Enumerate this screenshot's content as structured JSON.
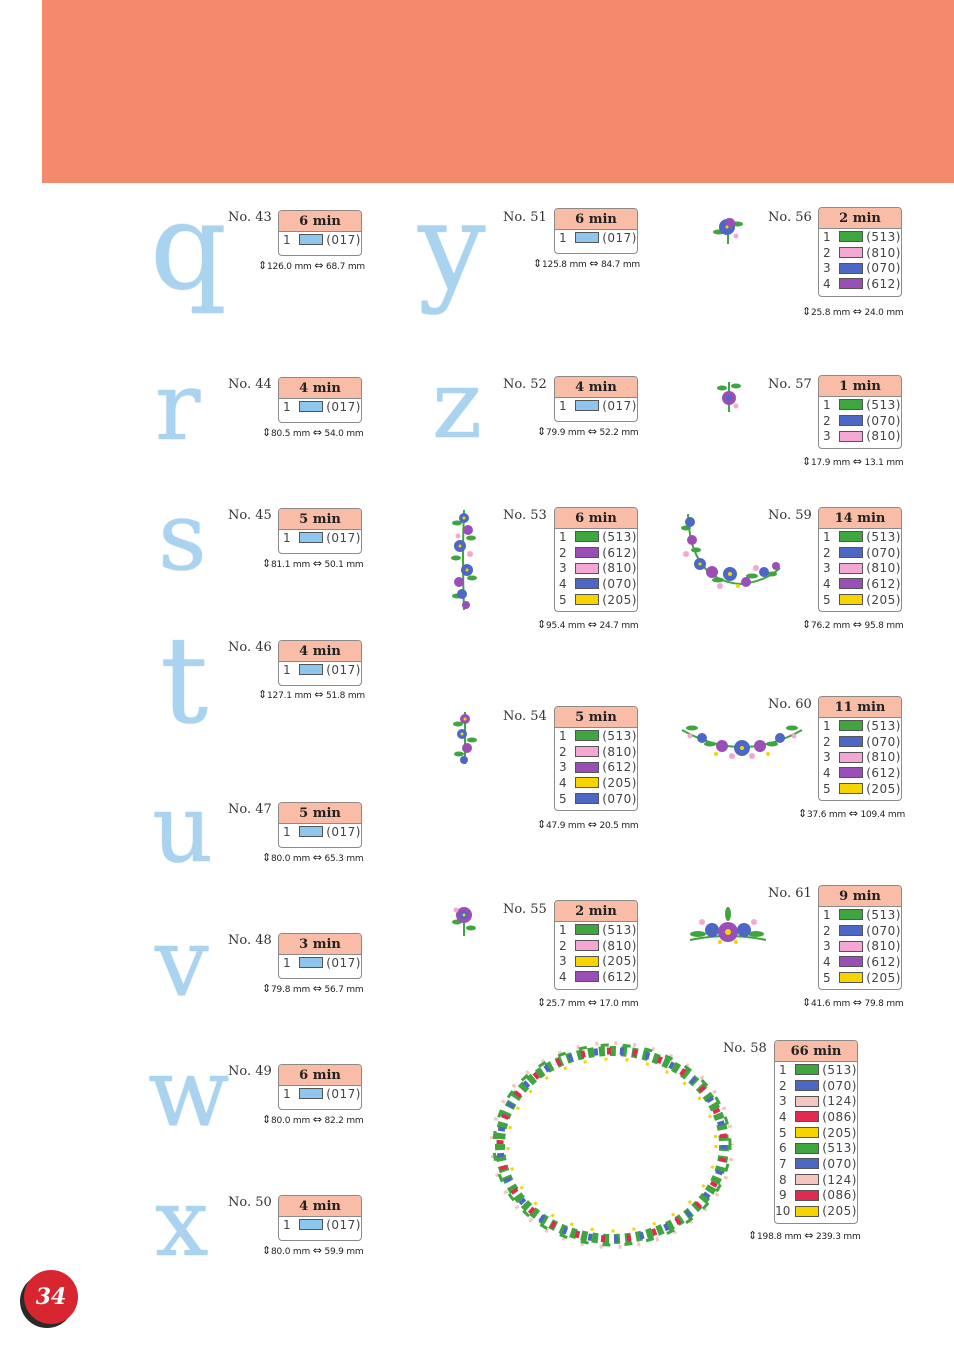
{
  "page_number": "34",
  "colors": {
    "header": "#f4896e",
    "glyph": "#a9d3ee",
    "badge": "#d7262f"
  },
  "thread_colors": {
    "017": "#8fc6ee",
    "513": "#3fa63f",
    "810": "#f4a7d3",
    "070": "#4d68c4",
    "612": "#9a4fb6",
    "205": "#f7d300",
    "124": "#f6c5c0",
    "086": "#e02a50"
  },
  "designs": [
    {
      "no": "No. 43",
      "time": "6 min",
      "glyph": "q",
      "threads": [
        {
          "n": "1",
          "code": "(017)"
        }
      ],
      "dims": "126.0 mm",
      "dimw": "68.7 mm"
    },
    {
      "no": "No. 44",
      "time": "4 min",
      "glyph": "r",
      "threads": [
        {
          "n": "1",
          "code": "(017)"
        }
      ],
      "dims": "80.5 mm",
      "dimw": "54.0 mm"
    },
    {
      "no": "No. 45",
      "time": "5 min",
      "glyph": "s",
      "threads": [
        {
          "n": "1",
          "code": "(017)"
        }
      ],
      "dims": "81.1 mm",
      "dimw": "50.1 mm"
    },
    {
      "no": "No. 46",
      "time": "4 min",
      "glyph": "t",
      "threads": [
        {
          "n": "1",
          "code": "(017)"
        }
      ],
      "dims": "127.1 mm",
      "dimw": "51.8 mm"
    },
    {
      "no": "No. 47",
      "time": "5 min",
      "glyph": "u",
      "threads": [
        {
          "n": "1",
          "code": "(017)"
        }
      ],
      "dims": "80.0 mm",
      "dimw": "65.3 mm"
    },
    {
      "no": "No. 48",
      "time": "3 min",
      "glyph": "v",
      "threads": [
        {
          "n": "1",
          "code": "(017)"
        }
      ],
      "dims": "79.8 mm",
      "dimw": "56.7 mm"
    },
    {
      "no": "No. 49",
      "time": "6 min",
      "glyph": "w",
      "threads": [
        {
          "n": "1",
          "code": "(017)"
        }
      ],
      "dims": "80.0 mm",
      "dimw": "82.2 mm"
    },
    {
      "no": "No. 50",
      "time": "4 min",
      "glyph": "x",
      "threads": [
        {
          "n": "1",
          "code": "(017)"
        }
      ],
      "dims": "80.0 mm",
      "dimw": "59.9 mm"
    },
    {
      "no": "No. 51",
      "time": "6 min",
      "glyph": "y",
      "threads": [
        {
          "n": "1",
          "code": "(017)"
        }
      ],
      "dims": "125.8 mm",
      "dimw": "84.7 mm"
    },
    {
      "no": "No. 52",
      "time": "4 min",
      "glyph": "z",
      "threads": [
        {
          "n": "1",
          "code": "(017)"
        }
      ],
      "dims": "79.9 mm",
      "dimw": "52.2 mm"
    },
    {
      "no": "No. 53",
      "time": "6 min",
      "threads": [
        {
          "n": "1",
          "code": "(513)"
        },
        {
          "n": "2",
          "code": "(612)"
        },
        {
          "n": "3",
          "code": "(810)"
        },
        {
          "n": "4",
          "code": "(070)"
        },
        {
          "n": "5",
          "code": "(205)"
        }
      ],
      "dims": "95.4 mm",
      "dimw": "24.7 mm"
    },
    {
      "no": "No. 54",
      "time": "5 min",
      "threads": [
        {
          "n": "1",
          "code": "(513)"
        },
        {
          "n": "2",
          "code": "(810)"
        },
        {
          "n": "3",
          "code": "(612)"
        },
        {
          "n": "4",
          "code": "(205)"
        },
        {
          "n": "5",
          "code": "(070)"
        }
      ],
      "dims": "47.9 mm",
      "dimw": "20.5 mm"
    },
    {
      "no": "No. 55",
      "time": "2 min",
      "threads": [
        {
          "n": "1",
          "code": "(513)"
        },
        {
          "n": "2",
          "code": "(810)"
        },
        {
          "n": "3",
          "code": "(205)"
        },
        {
          "n": "4",
          "code": "(612)"
        }
      ],
      "dims": "25.7 mm",
      "dimw": "17.0 mm"
    },
    {
      "no": "No. 56",
      "time": "2 min",
      "threads": [
        {
          "n": "1",
          "code": "(513)"
        },
        {
          "n": "2",
          "code": "(810)"
        },
        {
          "n": "3",
          "code": "(070)"
        },
        {
          "n": "4",
          "code": "(612)"
        }
      ],
      "dims": "25.8 mm",
      "dimw": "24.0 mm"
    },
    {
      "no": "No. 57",
      "time": "1 min",
      "threads": [
        {
          "n": "1",
          "code": "(513)"
        },
        {
          "n": "2",
          "code": "(070)"
        },
        {
          "n": "3",
          "code": "(810)"
        }
      ],
      "dims": "17.9 mm",
      "dimw": "13.1 mm"
    },
    {
      "no": "No. 59",
      "time": "14 min",
      "threads": [
        {
          "n": "1",
          "code": "(513)"
        },
        {
          "n": "2",
          "code": "(070)"
        },
        {
          "n": "3",
          "code": "(810)"
        },
        {
          "n": "4",
          "code": "(612)"
        },
        {
          "n": "5",
          "code": "(205)"
        }
      ],
      "dims": "76.2 mm",
      "dimw": "95.8 mm"
    },
    {
      "no": "No. 60",
      "time": "11 min",
      "threads": [
        {
          "n": "1",
          "code": "(513)"
        },
        {
          "n": "2",
          "code": "(070)"
        },
        {
          "n": "3",
          "code": "(810)"
        },
        {
          "n": "4",
          "code": "(612)"
        },
        {
          "n": "5",
          "code": "(205)"
        }
      ],
      "dims": "37.6 mm",
      "dimw": "109.4 mm"
    },
    {
      "no": "No. 61",
      "time": "9 min",
      "threads": [
        {
          "n": "1",
          "code": "(513)"
        },
        {
          "n": "2",
          "code": "(070)"
        },
        {
          "n": "3",
          "code": "(810)"
        },
        {
          "n": "4",
          "code": "(612)"
        },
        {
          "n": "5",
          "code": "(205)"
        }
      ],
      "dims": "41.6 mm",
      "dimw": "79.8 mm"
    },
    {
      "no": "No. 58",
      "time": "66 min",
      "threads": [
        {
          "n": "1",
          "code": "(513)"
        },
        {
          "n": "2",
          "code": "(070)"
        },
        {
          "n": "3",
          "code": "(124)"
        },
        {
          "n": "4",
          "code": "(086)"
        },
        {
          "n": "5",
          "code": "(205)"
        },
        {
          "n": "6",
          "code": "(513)"
        },
        {
          "n": "7",
          "code": "(070)"
        },
        {
          "n": "8",
          "code": "(124)"
        },
        {
          "n": "9",
          "code": "(086)"
        },
        {
          "n": "10",
          "code": "(205)"
        }
      ],
      "dims": "198.8 mm",
      "dimw": "239.3 mm"
    }
  ]
}
